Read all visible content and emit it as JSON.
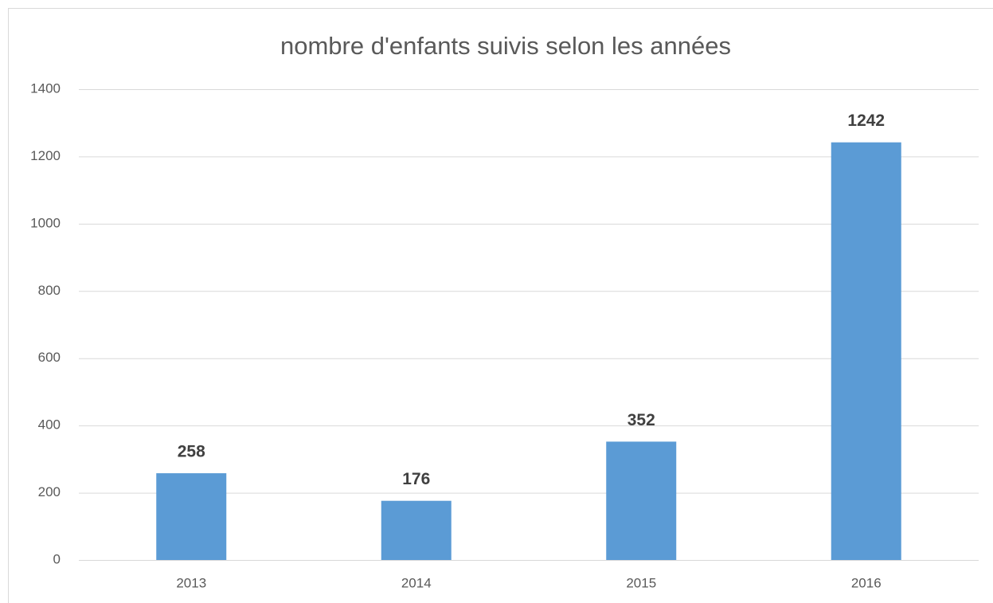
{
  "chart_data": {
    "type": "bar",
    "title": "nombre d'enfants suivis selon les années",
    "categories": [
      "2013",
      "2014",
      "2015",
      "2016"
    ],
    "values": [
      258,
      176,
      352,
      1242
    ],
    "color": "#5b9bd5",
    "ylim": [
      0,
      1400
    ],
    "yticks": [
      0,
      200,
      400,
      600,
      800,
      1000,
      1200,
      1400
    ],
    "grid": true,
    "data_labels": true
  }
}
